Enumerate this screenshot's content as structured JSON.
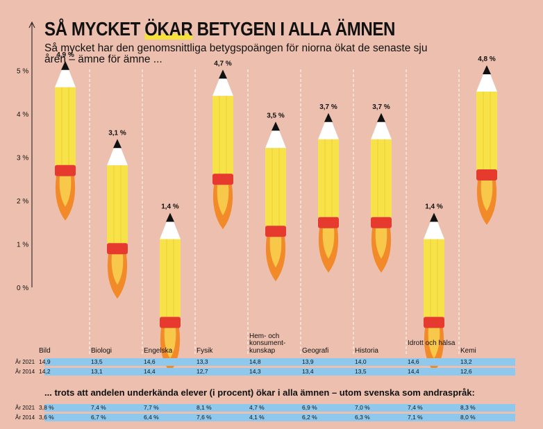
{
  "title_parts": {
    "pre": "SÅ MYCKET ",
    "highlight": "ÖKAR",
    "post": " BETYGEN I ALLA ÄMNEN"
  },
  "subtitle": "Så mycket har den genomsnittliga betygspoängen för niorna ökat de senaste sju åren – ämne för ämne ...",
  "chart_data": {
    "type": "bar",
    "categories": [
      "Bild",
      "Biologi",
      "Engelska",
      "Fysik",
      "Hem- och konsument-kunskap",
      "Geografi",
      "Historia",
      "Idrott och hälsa",
      "Kemi"
    ],
    "values": [
      4.9,
      3.1,
      1.4,
      4.7,
      3.5,
      3.7,
      3.7,
      1.4,
      4.8
    ],
    "value_labels": [
      "4,9 %",
      "3,1 %",
      "1,4 %",
      "4,7 %",
      "3,5 %",
      "3,7 %",
      "3,7 %",
      "1,4 %",
      "4,8 %"
    ],
    "y_ticks": [
      "0 %",
      "1 %",
      "2 %",
      "3 %",
      "4 %",
      "5 %"
    ],
    "ylim": [
      0,
      5
    ],
    "grid": "dashed vertical separators",
    "colors": {
      "pencil_body": "#f7e24a",
      "pencil_band": "#e63a2e",
      "flame": "#f28a2a",
      "row_band": "#8ec8ec",
      "background": "#ecbfae"
    }
  },
  "grades_table": {
    "rows": [
      {
        "label": "År 2021",
        "values": [
          "14,9",
          "13,5",
          "14,6",
          "13,3",
          "14,8",
          "13,9",
          "14,0",
          "14,6",
          "13,2"
        ]
      },
      {
        "label": "År 2014",
        "values": [
          "14,2",
          "13,1",
          "14,4",
          "12,7",
          "14,3",
          "13,4",
          "13,5",
          "14,4",
          "12,6"
        ]
      }
    ]
  },
  "note": "... trots att andelen underkända elever (i procent) ökar i alla ämnen – utom svenska som andraspråk:",
  "fail_table": {
    "rows": [
      {
        "label": "År 2021",
        "values": [
          "3,8 %",
          "7,4 %",
          "7,7 %",
          "8,1 %",
          "4,7 %",
          "6,9 %",
          "7,0 %",
          "7,4 %",
          "8,3 %"
        ]
      },
      {
        "label": "År 2014",
        "values": [
          "3,6 %",
          "6,7 %",
          "6,4 %",
          "7,6 %",
          "4,1 %",
          "6,2 %",
          "6,3 %",
          "7,1 %",
          "8,0 %"
        ]
      }
    ]
  }
}
